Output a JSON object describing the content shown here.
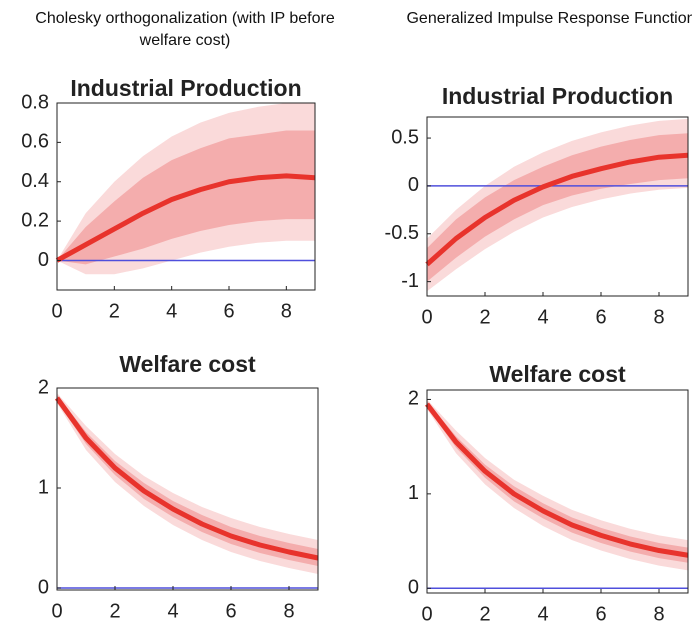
{
  "column_headers": [
    "Cholesky orthogonalization (with IP before welfare cost)",
    "Generalized Impulse Response Functions"
  ],
  "chart_data": [
    {
      "type": "line",
      "title": "Industrial Production",
      "x": [
        0,
        1,
        2,
        3,
        4,
        5,
        6,
        7,
        8,
        9
      ],
      "xlim": [
        0,
        9
      ],
      "xticks": [
        0,
        2,
        4,
        6,
        8
      ],
      "ylim": [
        -0.15,
        0.8
      ],
      "yticks": [
        0,
        0.2,
        0.4,
        0.6,
        0.8
      ],
      "zero_line": {
        "value": 0,
        "color": "#4f4fdc"
      },
      "bands": [
        {
          "color": "#fadada",
          "lower": [
            0,
            -0.07,
            -0.07,
            -0.04,
            0.0,
            0.04,
            0.07,
            0.09,
            0.1,
            0.1
          ],
          "upper": [
            0,
            0.24,
            0.4,
            0.53,
            0.63,
            0.7,
            0.75,
            0.78,
            0.8,
            0.8
          ]
        },
        {
          "color": "#f4adad",
          "lower": [
            0,
            -0.02,
            0.02,
            0.06,
            0.11,
            0.15,
            0.18,
            0.2,
            0.21,
            0.21
          ],
          "upper": [
            0,
            0.17,
            0.3,
            0.42,
            0.51,
            0.57,
            0.62,
            0.64,
            0.66,
            0.66
          ]
        }
      ],
      "series": [
        {
          "color": "#e8332c",
          "values": [
            0,
            0.08,
            0.16,
            0.24,
            0.31,
            0.36,
            0.4,
            0.42,
            0.43,
            0.42
          ]
        }
      ]
    },
    {
      "type": "line",
      "title": "Industrial Production",
      "x": [
        0,
        1,
        2,
        3,
        4,
        5,
        6,
        7,
        8,
        9
      ],
      "xlim": [
        0,
        9
      ],
      "xticks": [
        0,
        2,
        4,
        6,
        8
      ],
      "ylim": [
        -1.15,
        0.72
      ],
      "yticks": [
        -1,
        -0.5,
        0,
        0.5
      ],
      "zero_line": {
        "value": 0,
        "color": "#4f4fdc"
      },
      "bands": [
        {
          "color": "#fadada",
          "lower": [
            -1.1,
            -0.87,
            -0.66,
            -0.48,
            -0.33,
            -0.22,
            -0.14,
            -0.08,
            -0.04,
            -0.02
          ],
          "upper": [
            -0.55,
            -0.25,
            0.0,
            0.2,
            0.35,
            0.47,
            0.56,
            0.63,
            0.68,
            0.7
          ]
        },
        {
          "color": "#f4adad",
          "lower": [
            -1.0,
            -0.75,
            -0.53,
            -0.35,
            -0.2,
            -0.1,
            -0.03,
            0.02,
            0.06,
            0.08
          ],
          "upper": [
            -0.65,
            -0.35,
            -0.12,
            0.06,
            0.2,
            0.32,
            0.41,
            0.48,
            0.53,
            0.55
          ]
        }
      ],
      "series": [
        {
          "color": "#e8332c",
          "values": [
            -0.82,
            -0.55,
            -0.33,
            -0.15,
            -0.01,
            0.1,
            0.18,
            0.25,
            0.3,
            0.32
          ]
        }
      ]
    },
    {
      "type": "line",
      "title": "Welfare cost",
      "x": [
        0,
        1,
        2,
        3,
        4,
        5,
        6,
        7,
        8,
        9
      ],
      "xlim": [
        0,
        9
      ],
      "xticks": [
        0,
        2,
        4,
        6,
        8
      ],
      "ylim": [
        -0.02,
        2.0
      ],
      "yticks": [
        0,
        1,
        2
      ],
      "zero_line": {
        "value": 0,
        "color": "#4f4fdc"
      },
      "bands": [
        {
          "color": "#fadada",
          "lower": [
            1.85,
            1.38,
            1.06,
            0.82,
            0.63,
            0.48,
            0.36,
            0.27,
            0.2,
            0.14
          ],
          "upper": [
            1.95,
            1.62,
            1.34,
            1.12,
            0.95,
            0.81,
            0.7,
            0.61,
            0.54,
            0.48
          ]
        },
        {
          "color": "#f4adad",
          "lower": [
            1.87,
            1.44,
            1.13,
            0.89,
            0.71,
            0.56,
            0.44,
            0.35,
            0.28,
            0.22
          ],
          "upper": [
            1.93,
            1.56,
            1.27,
            1.05,
            0.87,
            0.73,
            0.61,
            0.52,
            0.45,
            0.39
          ]
        }
      ],
      "series": [
        {
          "color": "#e8332c",
          "values": [
            1.9,
            1.5,
            1.2,
            0.97,
            0.79,
            0.64,
            0.52,
            0.43,
            0.36,
            0.3
          ]
        }
      ]
    },
    {
      "type": "line",
      "title": "Welfare cost",
      "x": [
        0,
        1,
        2,
        3,
        4,
        5,
        6,
        7,
        8,
        9
      ],
      "xlim": [
        0,
        9
      ],
      "xticks": [
        0,
        2,
        4,
        6,
        8
      ],
      "ylim": [
        -0.05,
        2.1
      ],
      "yticks": [
        0,
        1,
        2
      ],
      "zero_line": {
        "value": 0,
        "color": "#4f4fdc"
      },
      "bands": [
        {
          "color": "#fadada",
          "lower": [
            1.9,
            1.43,
            1.1,
            0.85,
            0.66,
            0.51,
            0.4,
            0.31,
            0.24,
            0.19
          ],
          "upper": [
            2.0,
            1.67,
            1.38,
            1.15,
            0.98,
            0.83,
            0.72,
            0.63,
            0.56,
            0.51
          ]
        },
        {
          "color": "#f4adad",
          "lower": [
            1.92,
            1.49,
            1.17,
            0.92,
            0.74,
            0.59,
            0.48,
            0.39,
            0.32,
            0.27
          ],
          "upper": [
            1.98,
            1.61,
            1.31,
            1.08,
            0.9,
            0.75,
            0.64,
            0.55,
            0.48,
            0.43
          ]
        }
      ],
      "series": [
        {
          "color": "#e8332c",
          "values": [
            1.95,
            1.55,
            1.24,
            1.0,
            0.82,
            0.67,
            0.56,
            0.47,
            0.4,
            0.35
          ]
        }
      ]
    }
  ]
}
